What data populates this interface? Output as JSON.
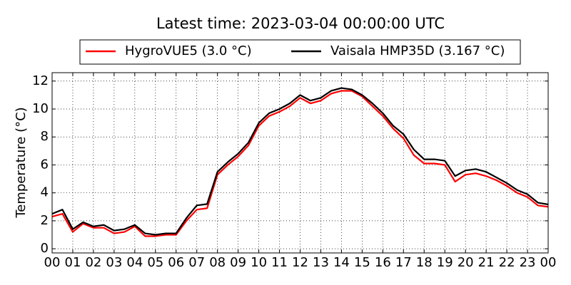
{
  "chart_data": {
    "type": "line",
    "title": "Latest time: 2023-03-04 00:00:00 UTC",
    "ylabel": "Temperature (°C)",
    "x": [
      0,
      0.5,
      1,
      1.5,
      2,
      2.5,
      3,
      3.5,
      4,
      4.5,
      5,
      5.5,
      6,
      6.5,
      7,
      7.5,
      8,
      8.5,
      9,
      9.5,
      10,
      10.5,
      11,
      11.5,
      12,
      12.5,
      13,
      13.5,
      14,
      14.5,
      15,
      15.5,
      16,
      16.5,
      17,
      17.5,
      18,
      18.5,
      19,
      19.5,
      20,
      20.5,
      21,
      21.5,
      22,
      22.5,
      23,
      23.5,
      24
    ],
    "series": [
      {
        "name": "HygroVUE5 (3.0 °C)",
        "color": "#ff0000",
        "values": [
          2.3,
          2.5,
          1.2,
          1.8,
          1.5,
          1.5,
          1.1,
          1.2,
          1.6,
          0.9,
          0.9,
          1.0,
          1.0,
          2.0,
          2.8,
          2.9,
          5.3,
          6.0,
          6.6,
          7.4,
          8.8,
          9.5,
          9.8,
          10.2,
          10.8,
          10.4,
          10.6,
          11.1,
          11.3,
          11.3,
          10.9,
          10.2,
          9.5,
          8.6,
          7.9,
          6.7,
          6.1,
          6.1,
          6.0,
          4.8,
          5.3,
          5.4,
          5.2,
          4.9,
          4.5,
          4.0,
          3.7,
          3.1,
          3.0
        ]
      },
      {
        "name": "Vaisala HMP35D (3.167 °C)",
        "color": "#000000",
        "values": [
          2.5,
          2.8,
          1.4,
          1.9,
          1.6,
          1.7,
          1.3,
          1.4,
          1.7,
          1.1,
          1.0,
          1.1,
          1.1,
          2.2,
          3.1,
          3.2,
          5.5,
          6.2,
          6.8,
          7.6,
          9.0,
          9.7,
          10.0,
          10.4,
          11.0,
          10.6,
          10.8,
          11.3,
          11.5,
          11.4,
          11.0,
          10.4,
          9.7,
          8.8,
          8.2,
          7.1,
          6.4,
          6.4,
          6.3,
          5.2,
          5.6,
          5.7,
          5.5,
          5.1,
          4.7,
          4.2,
          3.9,
          3.3,
          3.167
        ]
      }
    ],
    "xlim": [
      0,
      24
    ],
    "xticks": [
      {
        "value": 0,
        "label": "00"
      },
      {
        "value": 1,
        "label": "01"
      },
      {
        "value": 2,
        "label": "02"
      },
      {
        "value": 3,
        "label": "03"
      },
      {
        "value": 4,
        "label": "04"
      },
      {
        "value": 5,
        "label": "05"
      },
      {
        "value": 6,
        "label": "06"
      },
      {
        "value": 7,
        "label": "07"
      },
      {
        "value": 8,
        "label": "08"
      },
      {
        "value": 9,
        "label": "09"
      },
      {
        "value": 10,
        "label": "10"
      },
      {
        "value": 11,
        "label": "11"
      },
      {
        "value": 12,
        "label": "12"
      },
      {
        "value": 13,
        "label": "13"
      },
      {
        "value": 14,
        "label": "14"
      },
      {
        "value": 15,
        "label": "15"
      },
      {
        "value": 16,
        "label": "16"
      },
      {
        "value": 17,
        "label": "17"
      },
      {
        "value": 18,
        "label": "18"
      },
      {
        "value": 19,
        "label": "19"
      },
      {
        "value": 20,
        "label": "20"
      },
      {
        "value": 21,
        "label": "21"
      },
      {
        "value": 22,
        "label": "22"
      },
      {
        "value": 23,
        "label": "23"
      },
      {
        "value": 24,
        "label": "00"
      }
    ],
    "ylim": [
      -0.3,
      12.6
    ],
    "yticks": [
      0,
      2,
      4,
      6,
      8,
      10,
      12
    ],
    "grid": true,
    "legend": "top"
  }
}
